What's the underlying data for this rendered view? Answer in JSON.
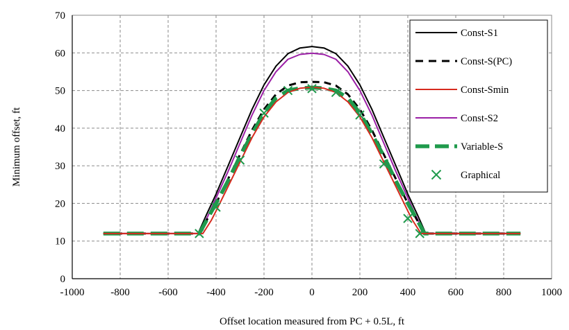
{
  "chart_data": {
    "type": "line",
    "xlabel": "Offset location measured from PC + 0.5L, ft",
    "ylabel": "Minimum offset, ft",
    "xlim": [
      -1000,
      1000
    ],
    "ylim": [
      0,
      70
    ],
    "xticks": [
      -1000,
      -800,
      -600,
      -400,
      -200,
      0,
      200,
      400,
      600,
      800,
      1000
    ],
    "yticks": [
      0,
      10,
      20,
      30,
      40,
      50,
      60,
      70
    ],
    "grid": "dashed",
    "legend_position": "top-right",
    "series": [
      {
        "name": "Const-S1",
        "color": "#000000",
        "style": "solid",
        "points": [
          [
            -870,
            12
          ],
          [
            -475,
            12
          ],
          [
            -440,
            17
          ],
          [
            -400,
            22.5
          ],
          [
            -350,
            30
          ],
          [
            -300,
            37.5
          ],
          [
            -250,
            45
          ],
          [
            -200,
            51.5
          ],
          [
            -150,
            56.5
          ],
          [
            -100,
            59.8
          ],
          [
            -50,
            61.3
          ],
          [
            0,
            61.7
          ],
          [
            50,
            61.3
          ],
          [
            100,
            59.8
          ],
          [
            150,
            56.5
          ],
          [
            200,
            51.5
          ],
          [
            250,
            45
          ],
          [
            300,
            37.5
          ],
          [
            350,
            30
          ],
          [
            400,
            22.5
          ],
          [
            440,
            17
          ],
          [
            475,
            12
          ],
          [
            870,
            12
          ]
        ]
      },
      {
        "name": "Const-S(PC)",
        "color": "#000000",
        "style": "dashed",
        "points": [
          [
            -870,
            12
          ],
          [
            -470,
            12
          ],
          [
            -435,
            16
          ],
          [
            -400,
            20
          ],
          [
            -350,
            26.5
          ],
          [
            -300,
            33
          ],
          [
            -250,
            39.5
          ],
          [
            -200,
            45
          ],
          [
            -150,
            49
          ],
          [
            -100,
            51.3
          ],
          [
            -50,
            52.2
          ],
          [
            0,
            52.3
          ],
          [
            50,
            52.2
          ],
          [
            100,
            51.3
          ],
          [
            150,
            49
          ],
          [
            200,
            45
          ],
          [
            250,
            39.5
          ],
          [
            300,
            33
          ],
          [
            350,
            26.5
          ],
          [
            400,
            20
          ],
          [
            435,
            16
          ],
          [
            470,
            12
          ],
          [
            870,
            12
          ]
        ]
      },
      {
        "name": "Const-Smin",
        "color": "#d62a1e",
        "style": "solid",
        "points": [
          [
            -870,
            12
          ],
          [
            -455,
            12
          ],
          [
            -420,
            15.5
          ],
          [
            -400,
            18
          ],
          [
            -350,
            24.5
          ],
          [
            -300,
            31
          ],
          [
            -250,
            37.5
          ],
          [
            -200,
            43
          ],
          [
            -150,
            47
          ],
          [
            -100,
            49.5
          ],
          [
            -50,
            50.6
          ],
          [
            0,
            50.9
          ],
          [
            50,
            50.6
          ],
          [
            100,
            49.5
          ],
          [
            150,
            47
          ],
          [
            200,
            43
          ],
          [
            250,
            37.5
          ],
          [
            300,
            31
          ],
          [
            350,
            24.5
          ],
          [
            400,
            18
          ],
          [
            420,
            15.5
          ],
          [
            455,
            12
          ],
          [
            870,
            12
          ]
        ]
      },
      {
        "name": "Const-S2",
        "color": "#9b1fa6",
        "style": "solid",
        "points": [
          [
            -870,
            12
          ],
          [
            -470,
            12
          ],
          [
            -435,
            16.5
          ],
          [
            -400,
            21.5
          ],
          [
            -350,
            28.5
          ],
          [
            -300,
            36
          ],
          [
            -250,
            43.5
          ],
          [
            -200,
            50
          ],
          [
            -150,
            55
          ],
          [
            -100,
            58.3
          ],
          [
            -50,
            59.6
          ],
          [
            0,
            59.9
          ],
          [
            50,
            59.6
          ],
          [
            100,
            58.3
          ],
          [
            150,
            55
          ],
          [
            200,
            50
          ],
          [
            250,
            43.5
          ],
          [
            300,
            36
          ],
          [
            350,
            28.5
          ],
          [
            400,
            21.5
          ],
          [
            435,
            16.5
          ],
          [
            470,
            12
          ],
          [
            870,
            12
          ]
        ]
      },
      {
        "name": "Variable-S",
        "color": "#1f9a4c",
        "style": "thick-dashed",
        "points": [
          [
            -870,
            12
          ],
          [
            -470,
            12
          ],
          [
            -440,
            15.5
          ],
          [
            -400,
            20
          ],
          [
            -350,
            26
          ],
          [
            -300,
            32.5
          ],
          [
            -250,
            38.5
          ],
          [
            -200,
            44
          ],
          [
            -150,
            48
          ],
          [
            -100,
            50
          ],
          [
            -50,
            50.6
          ],
          [
            0,
            50.8
          ],
          [
            50,
            50.6
          ],
          [
            100,
            50
          ],
          [
            150,
            48
          ],
          [
            200,
            44
          ],
          [
            250,
            38.5
          ],
          [
            300,
            32.5
          ],
          [
            350,
            26
          ],
          [
            400,
            20
          ],
          [
            440,
            15.5
          ],
          [
            470,
            12
          ],
          [
            870,
            12
          ]
        ]
      },
      {
        "name": "Graphical",
        "color": "#1f9a4c",
        "style": "x-marker",
        "points": [
          [
            -470,
            12
          ],
          [
            -400,
            19
          ],
          [
            -300,
            31.5
          ],
          [
            -200,
            44
          ],
          [
            -100,
            50
          ],
          [
            0,
            50.5
          ],
          [
            100,
            49.5
          ],
          [
            200,
            43.5
          ],
          [
            300,
            30.5
          ],
          [
            400,
            16
          ],
          [
            450,
            12
          ]
        ]
      }
    ]
  }
}
